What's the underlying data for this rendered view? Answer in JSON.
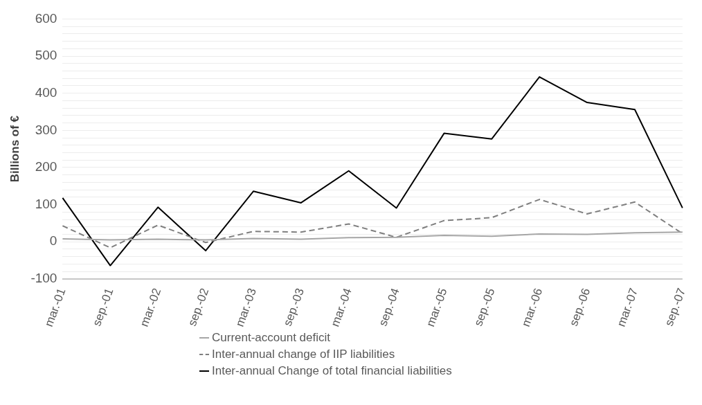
{
  "chart_data": {
    "type": "line",
    "ylabel": "Billions of €",
    "categories": [
      "mar.-01",
      "sep.-01",
      "mar.-02",
      "sep.-02",
      "mar.-03",
      "sep.-03",
      "mar.-04",
      "sep.-04",
      "mar.-05",
      "sep.-05",
      "mar.-06",
      "sep.-06",
      "mar.-07",
      "sep.-07"
    ],
    "series": [
      {
        "name": "Current-account deficit",
        "color": "#a6a6a6",
        "line_style": "solid",
        "values": [
          8,
          5,
          7,
          5,
          9,
          7,
          11,
          12,
          17,
          15,
          21,
          20,
          24,
          26
        ]
      },
      {
        "name": "Inter-annual change of IIP liabilities",
        "color": "#7f7f7f",
        "line_style": "dashed",
        "values": [
          43,
          -16,
          45,
          -2,
          28,
          26,
          48,
          12,
          57,
          65,
          114,
          75,
          107,
          22
        ]
      },
      {
        "name": "Inter-annual Change of total financial liabilities",
        "color": "#000000",
        "line_style": "solid",
        "values": [
          118,
          -64,
          93,
          -24,
          136,
          105,
          191,
          91,
          292,
          277,
          444,
          375,
          356,
          91
        ]
      }
    ],
    "ylim": [
      -100,
      600
    ],
    "yticks": [
      -100,
      {
        "value": -80,
        "label": null
      },
      {
        "value": -60,
        "label": null
      },
      {
        "value": -40,
        "label": null
      },
      {
        "value": -20,
        "label": null
      },
      0,
      {
        "value": 20,
        "label": null
      },
      {
        "value": 40,
        "label": null
      },
      {
        "value": 60,
        "label": null
      },
      {
        "value": 80,
        "label": null
      },
      100,
      {
        "value": 120,
        "label": null
      },
      {
        "value": 140,
        "label": null
      },
      {
        "value": 160,
        "label": null
      },
      {
        "value": 180,
        "label": null
      },
      200,
      {
        "value": 220,
        "label": null
      },
      {
        "value": 240,
        "label": null
      },
      {
        "value": 260,
        "label": null
      },
      {
        "value": 280,
        "label": null
      },
      300,
      {
        "value": 320,
        "label": null
      },
      {
        "value": 340,
        "label": null
      },
      {
        "value": 360,
        "label": null
      },
      {
        "value": 380,
        "label": null
      },
      400,
      {
        "value": 420,
        "label": null
      },
      {
        "value": 440,
        "label": null
      },
      {
        "value": 460,
        "label": null
      },
      {
        "value": 480,
        "label": null
      },
      500,
      {
        "value": 520,
        "label": null
      },
      {
        "value": 540,
        "label": null
      },
      {
        "value": 560,
        "label": null
      },
      {
        "value": 580,
        "label": null
      },
      600
    ],
    "grid": "y",
    "legend": "bottom",
    "marker": "none"
  }
}
